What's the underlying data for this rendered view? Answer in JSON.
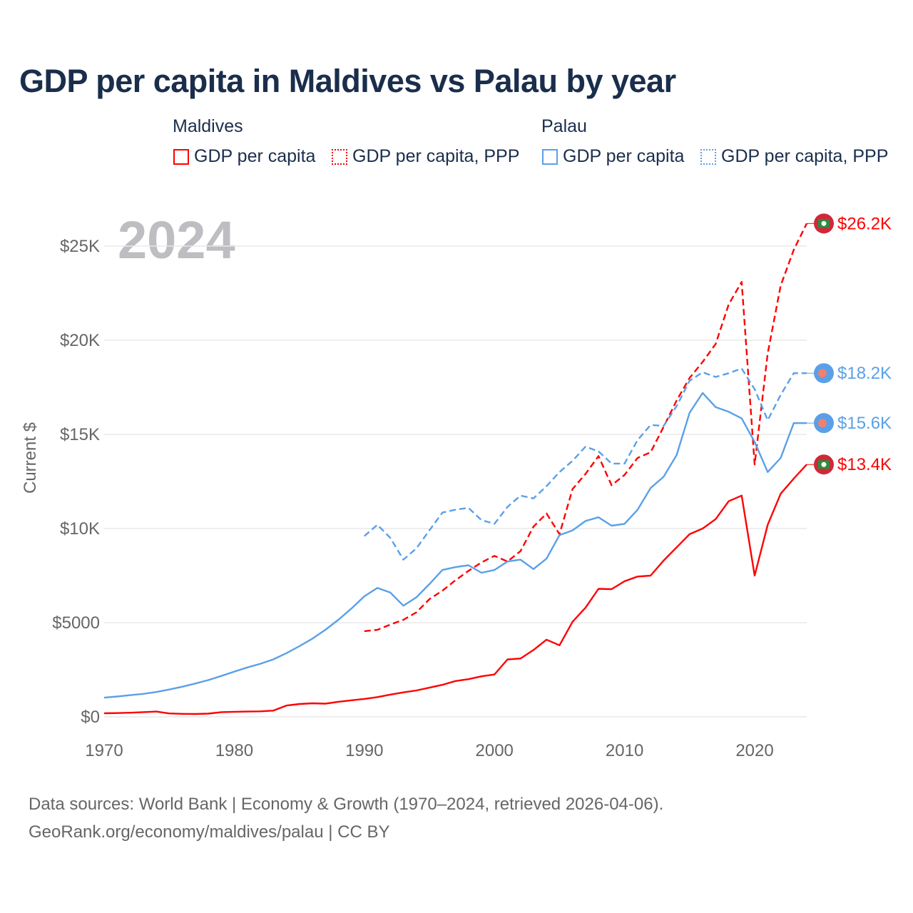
{
  "title": "GDP per capita in Maldives vs Palau by year",
  "legend": {
    "groups": [
      "Maldives",
      "Palau"
    ],
    "items": [
      {
        "label": "GDP per capita",
        "country": "Maldives",
        "style": "solid",
        "color": "#ff0000"
      },
      {
        "label": "GDP per capita, PPP",
        "country": "Maldives",
        "style": "dotted",
        "color": "#ff0000"
      },
      {
        "label": "GDP per capita",
        "country": "Palau",
        "style": "solid",
        "color": "#5aa0e8"
      },
      {
        "label": "GDP per capita, PPP",
        "country": "Palau",
        "style": "dotted",
        "color": "#5aa0e8"
      }
    ]
  },
  "source": {
    "line1": "Data sources: World Bank | Economy & Growth (1970–2024, retrieved 2026-04-06).",
    "line2": "GeoRank.org/economy/maldives/palau | CC BY"
  },
  "chart_data": {
    "type": "line",
    "title": "GDP per capita in Maldives vs Palau by year",
    "xlabel": "",
    "ylabel": "Current $",
    "year_watermark": "2024",
    "xlim": [
      1970,
      2024
    ],
    "ylim": [
      0,
      27000
    ],
    "x_ticks": [
      1970,
      1980,
      1990,
      2000,
      2010,
      2020
    ],
    "x_tick_labels": [
      "1970",
      "1980",
      "1990",
      "2000",
      "2010",
      "2020"
    ],
    "y_ticks": [
      0,
      5000,
      10000,
      15000,
      20000,
      25000
    ],
    "y_tick_labels": [
      "$0",
      "$5000",
      "$10K",
      "$15K",
      "$20K",
      "$25K"
    ],
    "grid": true,
    "legend_position": "top",
    "series": [
      {
        "name": "Maldives GDP per capita",
        "color": "#ff0000",
        "dashed": false,
        "start": 1970,
        "end_label": "$13.4K",
        "flag": "maldives",
        "values": [
          190,
          200,
          220,
          250,
          280,
          180,
          160,
          150,
          170,
          250,
          270,
          280,
          290,
          330,
          600,
          680,
          720,
          700,
          800,
          880,
          950,
          1050,
          1180,
          1300,
          1400,
          1550,
          1700,
          1900,
          2000,
          2150,
          2250,
          3050,
          3100,
          3550,
          4100,
          3800,
          5050,
          5800,
          6800,
          6780,
          7200,
          7450,
          7500,
          8300,
          9000,
          9700,
          10000,
          10500,
          11450,
          11750,
          7500,
          10200,
          11850,
          12650,
          13400
        ]
      },
      {
        "name": "Maldives GDP per capita, PPP",
        "color": "#ff0000",
        "dashed": true,
        "start": 1990,
        "end_label": "$26.2K",
        "flag": "maldives",
        "values": [
          4550,
          4620,
          4900,
          5150,
          5550,
          6250,
          6700,
          7250,
          7750,
          8200,
          8550,
          8250,
          8800,
          10100,
          10800,
          9700,
          12100,
          12900,
          13850,
          12300,
          12850,
          13750,
          14050,
          15400,
          16800,
          18000,
          18850,
          19800,
          21900,
          23100,
          13400,
          19300,
          22900,
          24800,
          26200
        ]
      },
      {
        "name": "Palau GDP per capita",
        "color": "#5aa0e8",
        "dashed": false,
        "start": 1970,
        "end_label": "$15.6K",
        "flag": "palau",
        "values": [
          1020,
          1080,
          1150,
          1220,
          1320,
          1450,
          1600,
          1770,
          1950,
          2170,
          2400,
          2620,
          2820,
          3050,
          3380,
          3750,
          4150,
          4620,
          5150,
          5750,
          6400,
          6850,
          6600,
          5900,
          6350,
          7050,
          7800,
          7950,
          8050,
          7650,
          7800,
          8250,
          8350,
          7850,
          8400,
          9650,
          9900,
          10400,
          10600,
          10150,
          10250,
          11000,
          12150,
          12750,
          13900,
          16150,
          17200,
          16450,
          16200,
          15850,
          14600,
          13000,
          13750,
          15600,
          15600
        ]
      },
      {
        "name": "Palau GDP per capita, PPP",
        "color": "#5aa0e8",
        "dashed": true,
        "start": 1990,
        "end_label": "$18.2K",
        "flag": "palau",
        "values": [
          9600,
          10200,
          9500,
          8350,
          8950,
          9900,
          10850,
          11000,
          11100,
          10450,
          10250,
          11150,
          11750,
          11600,
          12250,
          13000,
          13600,
          14350,
          14100,
          13450,
          13450,
          14700,
          15500,
          15450,
          16500,
          17850,
          18300,
          18050,
          18250,
          18500,
          17400,
          15750,
          17100,
          18250,
          18250
        ]
      }
    ]
  }
}
